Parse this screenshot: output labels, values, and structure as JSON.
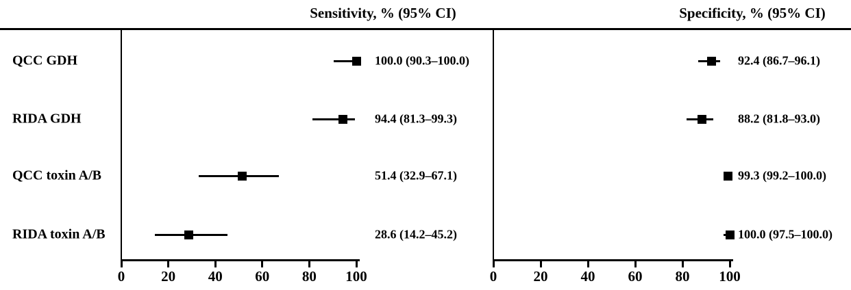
{
  "figure_title": "",
  "headers": {
    "sensitivity": "Sensitivity, % (95% CI)",
    "specificity": "Specificity, % (95% CI)"
  },
  "colors": {
    "ink": "#000000",
    "background": "#ffffff"
  },
  "chart_data": {
    "type": "forest",
    "orientation": "horizontal",
    "categories": [
      "QCC GDH",
      "RIDA GDH",
      "QCC toxin A/B",
      "RIDA toxin A/B"
    ],
    "panels": [
      {
        "title": "Sensitivity, % (95% CI)",
        "xlim": [
          0,
          100
        ],
        "ticks": [
          "0",
          "20",
          "40",
          "60",
          "80",
          "100"
        ],
        "series": [
          {
            "label": "QCC GDH",
            "value": 100.0,
            "ci_low": 90.3,
            "ci_high": 100.0,
            "label_text": "100.0 (90.3–100.0)"
          },
          {
            "label": "RIDA GDH",
            "value": 94.4,
            "ci_low": 81.3,
            "ci_high": 99.3,
            "label_text": "94.4 (81.3–99.3)"
          },
          {
            "label": "QCC toxin A/B",
            "value": 51.4,
            "ci_low": 32.9,
            "ci_high": 67.1,
            "label_text": "51.4 (32.9–67.1)"
          },
          {
            "label": "RIDA toxin A/B",
            "value": 28.6,
            "ci_low": 14.2,
            "ci_high": 45.2,
            "label_text": "28.6 (14.2–45.2)"
          }
        ]
      },
      {
        "title": "Specificity, % (95% CI)",
        "xlim": [
          0,
          100
        ],
        "ticks": [
          "0",
          "20",
          "40",
          "60",
          "80",
          "100"
        ],
        "series": [
          {
            "label": "QCC GDH",
            "value": 92.4,
            "ci_low": 86.7,
            "ci_high": 96.1,
            "label_text": "92.4 (86.7–96.1)"
          },
          {
            "label": "RIDA GDH",
            "value": 88.2,
            "ci_low": 81.8,
            "ci_high": 93.0,
            "label_text": "88.2 (81.8–93.0)"
          },
          {
            "label": "QCC toxin A/B",
            "value": 99.3,
            "ci_low": 99.2,
            "ci_high": 100.0,
            "label_text": "99.3 (99.2–100.0)"
          },
          {
            "label": "RIDA toxin A/B",
            "value": 100.0,
            "ci_low": 97.5,
            "ci_high": 100.0,
            "label_text": "100.0 (97.5–100.0)"
          }
        ]
      }
    ]
  }
}
